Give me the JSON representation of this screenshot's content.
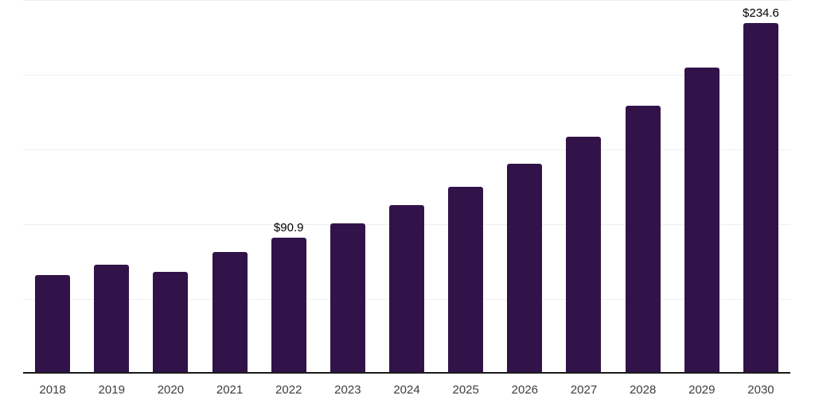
{
  "chart_data": {
    "type": "bar",
    "categories": [
      "2018",
      "2019",
      "2020",
      "2021",
      "2022",
      "2023",
      "2024",
      "2025",
      "2026",
      "2027",
      "2028",
      "2029",
      "2030"
    ],
    "values": [
      66.1,
      72.7,
      68.3,
      81.4,
      90.9,
      100.5,
      112.6,
      125.0,
      140.4,
      158.4,
      179.4,
      204.8,
      234.6
    ],
    "point_labels": [
      "",
      "",
      "",
      "",
      "$90.9",
      "",
      "",
      "",
      "",
      "",
      "",
      "",
      "$234.6"
    ],
    "unit_prefix": "$",
    "xlabel": "",
    "ylabel": "",
    "ylim": [
      0,
      250
    ],
    "gridline_values": [
      50,
      100,
      150,
      200,
      250
    ],
    "grid": true,
    "legend": false
  },
  "colors": {
    "bar": "#321349",
    "gridline": "#efefef",
    "axis_line": "#1a1a1a",
    "tick_label": "#3d3d3d",
    "data_label": "#000000",
    "background": "#ffffff"
  }
}
